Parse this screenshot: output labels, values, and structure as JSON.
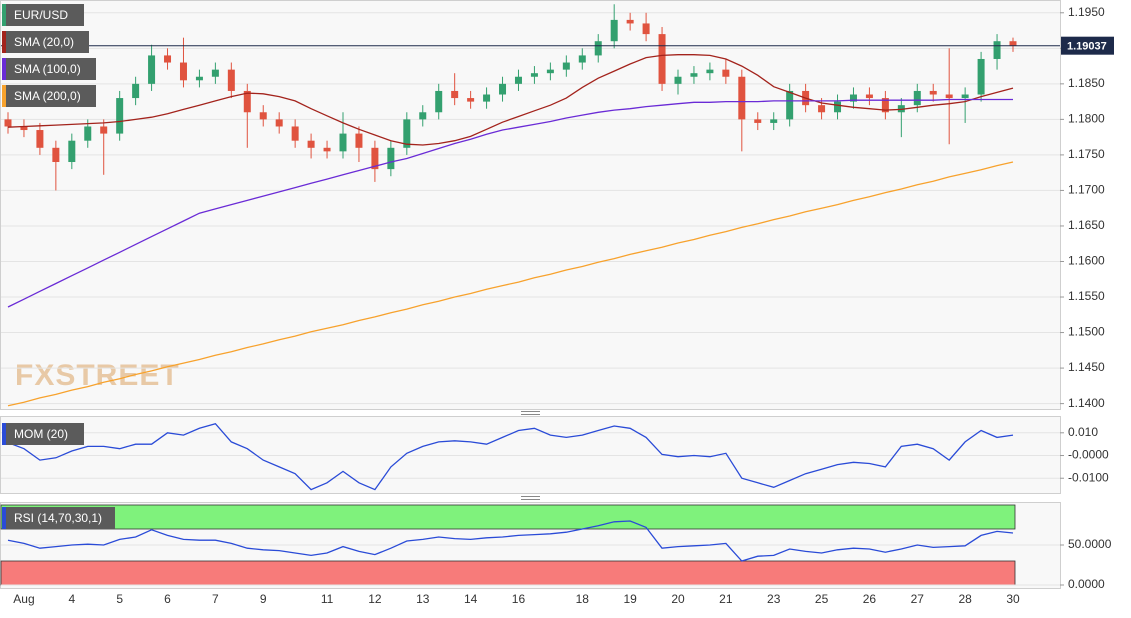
{
  "chart_data": [
    {
      "type": "candlestick",
      "name": "EUR/USD",
      "watermark": "FXSTREET",
      "up_color": "#33a06f",
      "down_color": "#e0533f",
      "last_color": "#1d2a4a",
      "categories": [
        null,
        "Aug",
        null,
        null,
        "4",
        null,
        null,
        "5",
        null,
        null,
        "6",
        null,
        null,
        "7",
        null,
        null,
        "9",
        null,
        null,
        null,
        "11",
        null,
        null,
        "12",
        null,
        null,
        "13",
        null,
        null,
        "14",
        null,
        null,
        "16",
        null,
        null,
        null,
        "18",
        null,
        null,
        "19",
        null,
        null,
        "20",
        null,
        null,
        "21",
        null,
        null,
        "23",
        null,
        null,
        "25",
        null,
        null,
        "26",
        null,
        null,
        "27",
        null,
        null,
        "28",
        null,
        null,
        "30"
      ],
      "open": [
        1.18,
        1.179,
        1.1785,
        1.176,
        1.174,
        1.177,
        1.179,
        1.178,
        1.183,
        1.185,
        1.189,
        1.188,
        1.1855,
        1.186,
        1.187,
        1.184,
        1.181,
        1.18,
        1.179,
        1.177,
        1.176,
        1.1755,
        1.178,
        1.176,
        1.173,
        1.176,
        1.18,
        1.181,
        1.184,
        1.183,
        1.1825,
        1.1835,
        1.185,
        1.186,
        1.1865,
        1.187,
        1.188,
        1.189,
        1.191,
        1.194,
        1.1935,
        1.192,
        1.185,
        1.186,
        1.1865,
        1.187,
        1.186,
        1.18,
        1.1795,
        1.18,
        1.184,
        1.182,
        1.181,
        1.1825,
        1.1835,
        1.183,
        1.181,
        1.182,
        1.184,
        1.1835,
        1.183,
        1.1835,
        1.1885,
        1.191
      ],
      "high": [
        1.181,
        1.18,
        1.1795,
        1.177,
        1.178,
        1.18,
        1.18,
        1.184,
        1.186,
        1.1905,
        1.19,
        1.1915,
        1.187,
        1.188,
        1.188,
        1.185,
        1.182,
        1.181,
        1.18,
        1.178,
        1.177,
        1.181,
        1.179,
        1.177,
        1.177,
        1.181,
        1.182,
        1.185,
        1.1865,
        1.184,
        1.1845,
        1.186,
        1.187,
        1.1875,
        1.188,
        1.189,
        1.19,
        1.192,
        1.1962,
        1.195,
        1.195,
        1.193,
        1.187,
        1.1875,
        1.188,
        1.1885,
        1.187,
        1.181,
        1.181,
        1.185,
        1.185,
        1.183,
        1.1835,
        1.1845,
        1.1845,
        1.184,
        1.183,
        1.185,
        1.185,
        1.19,
        1.1845,
        1.1895,
        1.192,
        1.1915
      ],
      "low": [
        1.178,
        1.1775,
        1.175,
        1.17,
        1.173,
        1.176,
        1.1722,
        1.177,
        1.182,
        1.184,
        1.187,
        1.1845,
        1.1845,
        1.185,
        1.183,
        1.176,
        1.179,
        1.178,
        1.176,
        1.1745,
        1.1745,
        1.1745,
        1.174,
        1.1712,
        1.172,
        1.175,
        1.179,
        1.18,
        1.182,
        1.1815,
        1.1815,
        1.1825,
        1.184,
        1.185,
        1.1855,
        1.186,
        1.187,
        1.188,
        1.19,
        1.1925,
        1.191,
        1.184,
        1.1835,
        1.185,
        1.1855,
        1.185,
        1.1755,
        1.1785,
        1.1785,
        1.179,
        1.181,
        1.18,
        1.18,
        1.1815,
        1.182,
        1.18,
        1.1775,
        1.181,
        1.1825,
        1.1765,
        1.1795,
        1.1825,
        1.187,
        1.1895
      ],
      "close": [
        1.179,
        1.1785,
        1.176,
        1.174,
        1.177,
        1.179,
        1.178,
        1.183,
        1.185,
        1.189,
        1.188,
        1.1855,
        1.186,
        1.187,
        1.184,
        1.181,
        1.18,
        1.179,
        1.177,
        1.176,
        1.1755,
        1.178,
        1.176,
        1.173,
        1.176,
        1.18,
        1.181,
        1.184,
        1.183,
        1.1825,
        1.1835,
        1.185,
        1.186,
        1.1865,
        1.187,
        1.188,
        1.189,
        1.191,
        1.194,
        1.1935,
        1.192,
        1.185,
        1.186,
        1.1865,
        1.187,
        1.186,
        1.18,
        1.1795,
        1.18,
        1.184,
        1.182,
        1.181,
        1.1825,
        1.1835,
        1.183,
        1.181,
        1.182,
        1.184,
        1.1835,
        1.183,
        1.1835,
        1.1885,
        1.191,
        1.19037
      ],
      "series": [
        {
          "name": "SMA (20,0)",
          "color": "#a3231c",
          "values": [
            1.1789,
            1.179,
            1.1791,
            1.1792,
            1.1793,
            1.1794,
            1.1795,
            1.1797,
            1.18,
            1.1803,
            1.1808,
            1.1814,
            1.182,
            1.1826,
            1.1832,
            1.1837,
            1.1836,
            1.1832,
            1.1826,
            1.1815,
            1.1805,
            1.1795,
            1.1786,
            1.1778,
            1.177,
            1.1765,
            1.1764,
            1.1766,
            1.177,
            1.1776,
            1.1786,
            1.1796,
            1.1804,
            1.1812,
            1.182,
            1.183,
            1.1845,
            1.1858,
            1.1868,
            1.1878,
            1.1887,
            1.189,
            1.1891,
            1.1891,
            1.189,
            1.1885,
            1.1875,
            1.1862,
            1.1846,
            1.1838,
            1.183,
            1.1823,
            1.182,
            1.1817,
            1.1815,
            1.1813,
            1.1814,
            1.1817,
            1.182,
            1.1822,
            1.1825,
            1.1832,
            1.1838,
            1.1844
          ]
        },
        {
          "name": "SMA (100,0)",
          "color": "#6a2bd6",
          "values": [
            1.1536,
            1.1547,
            1.1558,
            1.1569,
            1.158,
            1.1591,
            1.1602,
            1.1613,
            1.1624,
            1.1635,
            1.1646,
            1.1657,
            1.1668,
            1.1674,
            1.168,
            1.1686,
            1.1692,
            1.1698,
            1.1704,
            1.171,
            1.1716,
            1.1722,
            1.1728,
            1.1734,
            1.174,
            1.1745,
            1.1752,
            1.1759,
            1.1766,
            1.1772,
            1.1779,
            1.1785,
            1.1789,
            1.1793,
            1.1797,
            1.1802,
            1.1806,
            1.181,
            1.1813,
            1.1815,
            1.1818,
            1.182,
            1.1822,
            1.1824,
            1.1824,
            1.1825,
            1.1825,
            1.1825,
            1.1826,
            1.1826,
            1.1826,
            1.1826,
            1.1826,
            1.1827,
            1.1827,
            1.1827,
            1.1827,
            1.1827,
            1.1827,
            1.1828,
            1.1828,
            1.1828,
            1.1828,
            1.1828
          ]
        },
        {
          "name": "SMA (200,0)",
          "color": "#f7a22d",
          "values": [
            1.1397,
            1.1402,
            1.1408,
            1.1413,
            1.1419,
            1.1424,
            1.143,
            1.1435,
            1.1441,
            1.1446,
            1.1452,
            1.1457,
            1.1462,
            1.1468,
            1.1473,
            1.1479,
            1.1484,
            1.149,
            1.1495,
            1.1501,
            1.1506,
            1.1511,
            1.1517,
            1.1522,
            1.1528,
            1.1533,
            1.1539,
            1.1544,
            1.155,
            1.1555,
            1.1561,
            1.1566,
            1.1571,
            1.1577,
            1.1582,
            1.1588,
            1.1593,
            1.1599,
            1.1604,
            1.161,
            1.1615,
            1.162,
            1.1626,
            1.1631,
            1.1637,
            1.1642,
            1.1648,
            1.1653,
            1.1659,
            1.1664,
            1.167,
            1.1675,
            1.168,
            1.1686,
            1.1691,
            1.1697,
            1.1702,
            1.1708,
            1.1713,
            1.1719,
            1.1724,
            1.1729,
            1.1735,
            1.174
          ]
        }
      ],
      "ylim": [
        1.1391,
        1.1968
      ],
      "yticks": [
        {
          "value": 1.195,
          "label": "1.1950"
        },
        {
          "value": 1.19,
          "label": "1.1900"
        },
        {
          "value": 1.185,
          "label": "1.1850"
        },
        {
          "value": 1.18,
          "label": "1.1800"
        },
        {
          "value": 1.175,
          "label": "1.1750"
        },
        {
          "value": 1.17,
          "label": "1.1700"
        },
        {
          "value": 1.165,
          "label": "1.1650"
        },
        {
          "value": 1.16,
          "label": "1.1600"
        },
        {
          "value": 1.155,
          "label": "1.1550"
        },
        {
          "value": 1.15,
          "label": "1.1500"
        },
        {
          "value": 1.145,
          "label": "1.1450"
        },
        {
          "value": 1.14,
          "label": "1.1400"
        }
      ],
      "grid": true
    },
    {
      "type": "line",
      "series": [
        {
          "name": "MOM (20)",
          "color": "#2a4bd7",
          "values": [
            0.0057,
            0.003,
            -0.002,
            -0.001,
            0.002,
            0.004,
            0.004,
            0.003,
            0.005,
            0.005,
            0.01,
            0.009,
            0.012,
            0.014,
            0.006,
            0.003,
            -0.002,
            -0.005,
            -0.008,
            -0.015,
            -0.012,
            -0.007,
            -0.012,
            -0.015,
            -0.005,
            0.001,
            0.004,
            0.006,
            0.0065,
            0.006,
            0.005,
            0.008,
            0.011,
            0.012,
            0.009,
            0.008,
            0.009,
            0.011,
            0.013,
            0.012,
            0.008,
            0.0005,
            -0.0005,
            0.0,
            -0.0005,
            0.001,
            -0.01,
            -0.012,
            -0.014,
            -0.011,
            -0.008,
            -0.006,
            -0.004,
            -0.003,
            -0.0035,
            -0.005,
            0.004,
            0.005,
            0.003,
            -0.002,
            0.006,
            0.011,
            0.008,
            0.009
          ]
        }
      ],
      "ylim": [
        -0.0165,
        0.0174
      ],
      "yticks": [
        {
          "value": 0.01,
          "label": "0.010"
        },
        {
          "value": 0,
          "label": "-0.0000"
        },
        {
          "value": -0.01,
          "label": "-0.0100"
        }
      ],
      "grid": true
    },
    {
      "type": "line",
      "series": [
        {
          "name": "RSI (14,70,30,1)",
          "color": "#2a4bd7",
          "values": [
            56,
            52,
            46,
            48,
            50,
            51,
            50,
            57,
            60,
            69,
            62,
            57,
            56,
            56,
            52,
            46,
            44,
            43,
            40,
            37,
            40,
            48,
            42,
            38,
            46,
            55,
            57,
            60,
            58,
            57,
            59,
            60,
            62,
            63,
            64,
            66,
            70,
            74,
            79,
            80,
            72,
            46,
            48,
            49,
            50,
            52,
            30,
            36,
            37,
            45,
            42,
            40,
            44,
            46,
            45,
            41,
            45,
            50,
            47,
            48,
            49,
            62,
            67,
            65
          ]
        }
      ],
      "bands": [
        {
          "from": 70,
          "to": 100,
          "color": "#7ff27c"
        },
        {
          "from": 0,
          "to": 30,
          "color": "#f77b7a"
        }
      ],
      "ylim": [
        0,
        100
      ],
      "yticks": [
        {
          "value": 50,
          "label": "50.0000"
        },
        {
          "value": 0,
          "label": "0.0000"
        }
      ],
      "grid": true
    }
  ]
}
